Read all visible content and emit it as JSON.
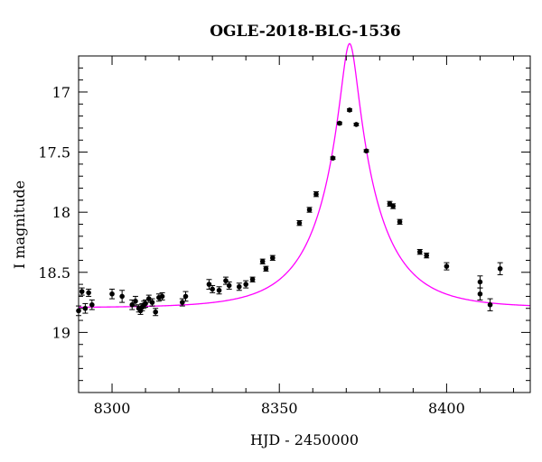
{
  "chart_data": {
    "type": "scatter",
    "title": "OGLE-2018-BLG-1536",
    "xlabel": "HJD - 2450000",
    "ylabel": "I magnitude",
    "xlim": [
      8290,
      8425
    ],
    "ylim": [
      19.5,
      16.7
    ],
    "y_inverted": true,
    "x_ticks": [
      8300,
      8350,
      8400
    ],
    "x_tick_labels": [
      "8300",
      "8350",
      "8400"
    ],
    "y_ticks": [
      17,
      17.5,
      18,
      18.5,
      19
    ],
    "y_tick_labels": [
      "17",
      "17.5",
      "18",
      "18.5",
      "19"
    ],
    "grid": false,
    "model_color": "#ff00ff",
    "point_color": "#000000",
    "model": {
      "t0": 8371.0,
      "u0": 0.133,
      "tE": 18.0,
      "base_mag": 18.795
    },
    "series": [
      {
        "kind": "points",
        "x": [
          8290,
          8291,
          8292,
          8293,
          8294,
          8300,
          8303,
          8306,
          8307,
          8308,
          8308.5,
          8309,
          8309.5,
          8310,
          8311,
          8312,
          8313,
          8314,
          8315,
          8321,
          8322,
          8329,
          8330,
          8332,
          8334,
          8335,
          8338,
          8340,
          8342,
          8345,
          8346,
          8348,
          8356,
          8359,
          8361,
          8366,
          8368,
          8371,
          8373,
          8376,
          8383,
          8384,
          8386,
          8392,
          8394,
          8400,
          8410,
          8410,
          8413,
          8416
        ],
        "y": [
          18.82,
          18.66,
          18.8,
          18.67,
          18.77,
          18.68,
          18.7,
          18.77,
          18.74,
          18.8,
          18.82,
          18.79,
          18.77,
          18.76,
          18.72,
          18.75,
          18.83,
          18.71,
          18.7,
          18.75,
          18.7,
          18.6,
          18.64,
          18.65,
          18.57,
          18.61,
          18.62,
          18.6,
          18.56,
          18.41,
          18.47,
          18.38,
          18.09,
          17.98,
          17.85,
          17.55,
          17.26,
          17.15,
          17.27,
          17.49,
          17.93,
          17.95,
          18.08,
          18.33,
          18.36,
          18.45,
          18.58,
          18.68,
          18.77,
          18.47
        ],
        "err": [
          0.04,
          0.03,
          0.04,
          0.03,
          0.04,
          0.04,
          0.05,
          0.04,
          0.04,
          0.03,
          0.03,
          0.03,
          0.03,
          0.03,
          0.03,
          0.03,
          0.03,
          0.03,
          0.03,
          0.03,
          0.04,
          0.04,
          0.03,
          0.03,
          0.03,
          0.03,
          0.03,
          0.03,
          0.02,
          0.02,
          0.02,
          0.02,
          0.02,
          0.02,
          0.02,
          0.01,
          0.01,
          0.01,
          0.01,
          0.01,
          0.02,
          0.02,
          0.02,
          0.02,
          0.02,
          0.03,
          0.05,
          0.05,
          0.05,
          0.05
        ]
      }
    ]
  }
}
